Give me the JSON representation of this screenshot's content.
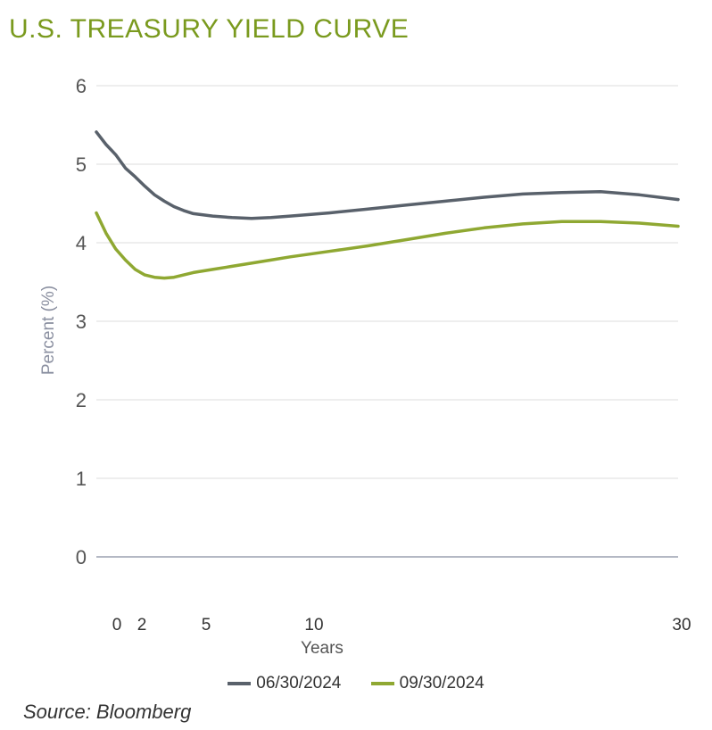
{
  "title": "U.S. TREASURY YIELD CURVE",
  "source": "Source: Bloomberg",
  "chart_data": {
    "type": "line",
    "xlabel": "Years",
    "ylabel": "Percent (%)",
    "ylim": [
      0,
      6
    ],
    "yticks": [
      0,
      1,
      2,
      3,
      4,
      5,
      6
    ],
    "xticks": [
      {
        "label": "0",
        "value": 0
      },
      {
        "label": "2",
        "value": 2
      },
      {
        "label": "5",
        "value": 5
      },
      {
        "label": "10",
        "value": 10
      },
      {
        "label": "30",
        "value": 30
      }
    ],
    "grid": true,
    "series": [
      {
        "name": "06/30/2024",
        "color": "#59616b",
        "points": [
          [
            0,
            5.41
          ],
          [
            0.5,
            5.25
          ],
          [
            1,
            5.12
          ],
          [
            1.5,
            4.95
          ],
          [
            2,
            4.84
          ],
          [
            2.5,
            4.72
          ],
          [
            3,
            4.61
          ],
          [
            3.5,
            4.53
          ],
          [
            4,
            4.46
          ],
          [
            4.5,
            4.41
          ],
          [
            5,
            4.37
          ],
          [
            6,
            4.34
          ],
          [
            7,
            4.32
          ],
          [
            8,
            4.31
          ],
          [
            9,
            4.32
          ],
          [
            10,
            4.34
          ],
          [
            12,
            4.38
          ],
          [
            14,
            4.43
          ],
          [
            16,
            4.48
          ],
          [
            18,
            4.53
          ],
          [
            20,
            4.58
          ],
          [
            22,
            4.62
          ],
          [
            24,
            4.64
          ],
          [
            26,
            4.65
          ],
          [
            28,
            4.61
          ],
          [
            30,
            4.55
          ]
        ]
      },
      {
        "name": "09/30/2024",
        "color": "#8fa832",
        "points": [
          [
            0,
            4.38
          ],
          [
            0.5,
            4.12
          ],
          [
            1,
            3.92
          ],
          [
            1.5,
            3.78
          ],
          [
            2,
            3.66
          ],
          [
            2.5,
            3.59
          ],
          [
            3,
            3.56
          ],
          [
            3.5,
            3.55
          ],
          [
            4,
            3.56
          ],
          [
            4.5,
            3.59
          ],
          [
            5,
            3.62
          ],
          [
            6,
            3.66
          ],
          [
            7,
            3.7
          ],
          [
            8,
            3.74
          ],
          [
            9,
            3.78
          ],
          [
            10,
            3.82
          ],
          [
            12,
            3.89
          ],
          [
            14,
            3.96
          ],
          [
            16,
            4.04
          ],
          [
            18,
            4.12
          ],
          [
            20,
            4.19
          ],
          [
            22,
            4.24
          ],
          [
            24,
            4.27
          ],
          [
            26,
            4.27
          ],
          [
            28,
            4.25
          ],
          [
            30,
            4.21
          ]
        ]
      }
    ]
  }
}
